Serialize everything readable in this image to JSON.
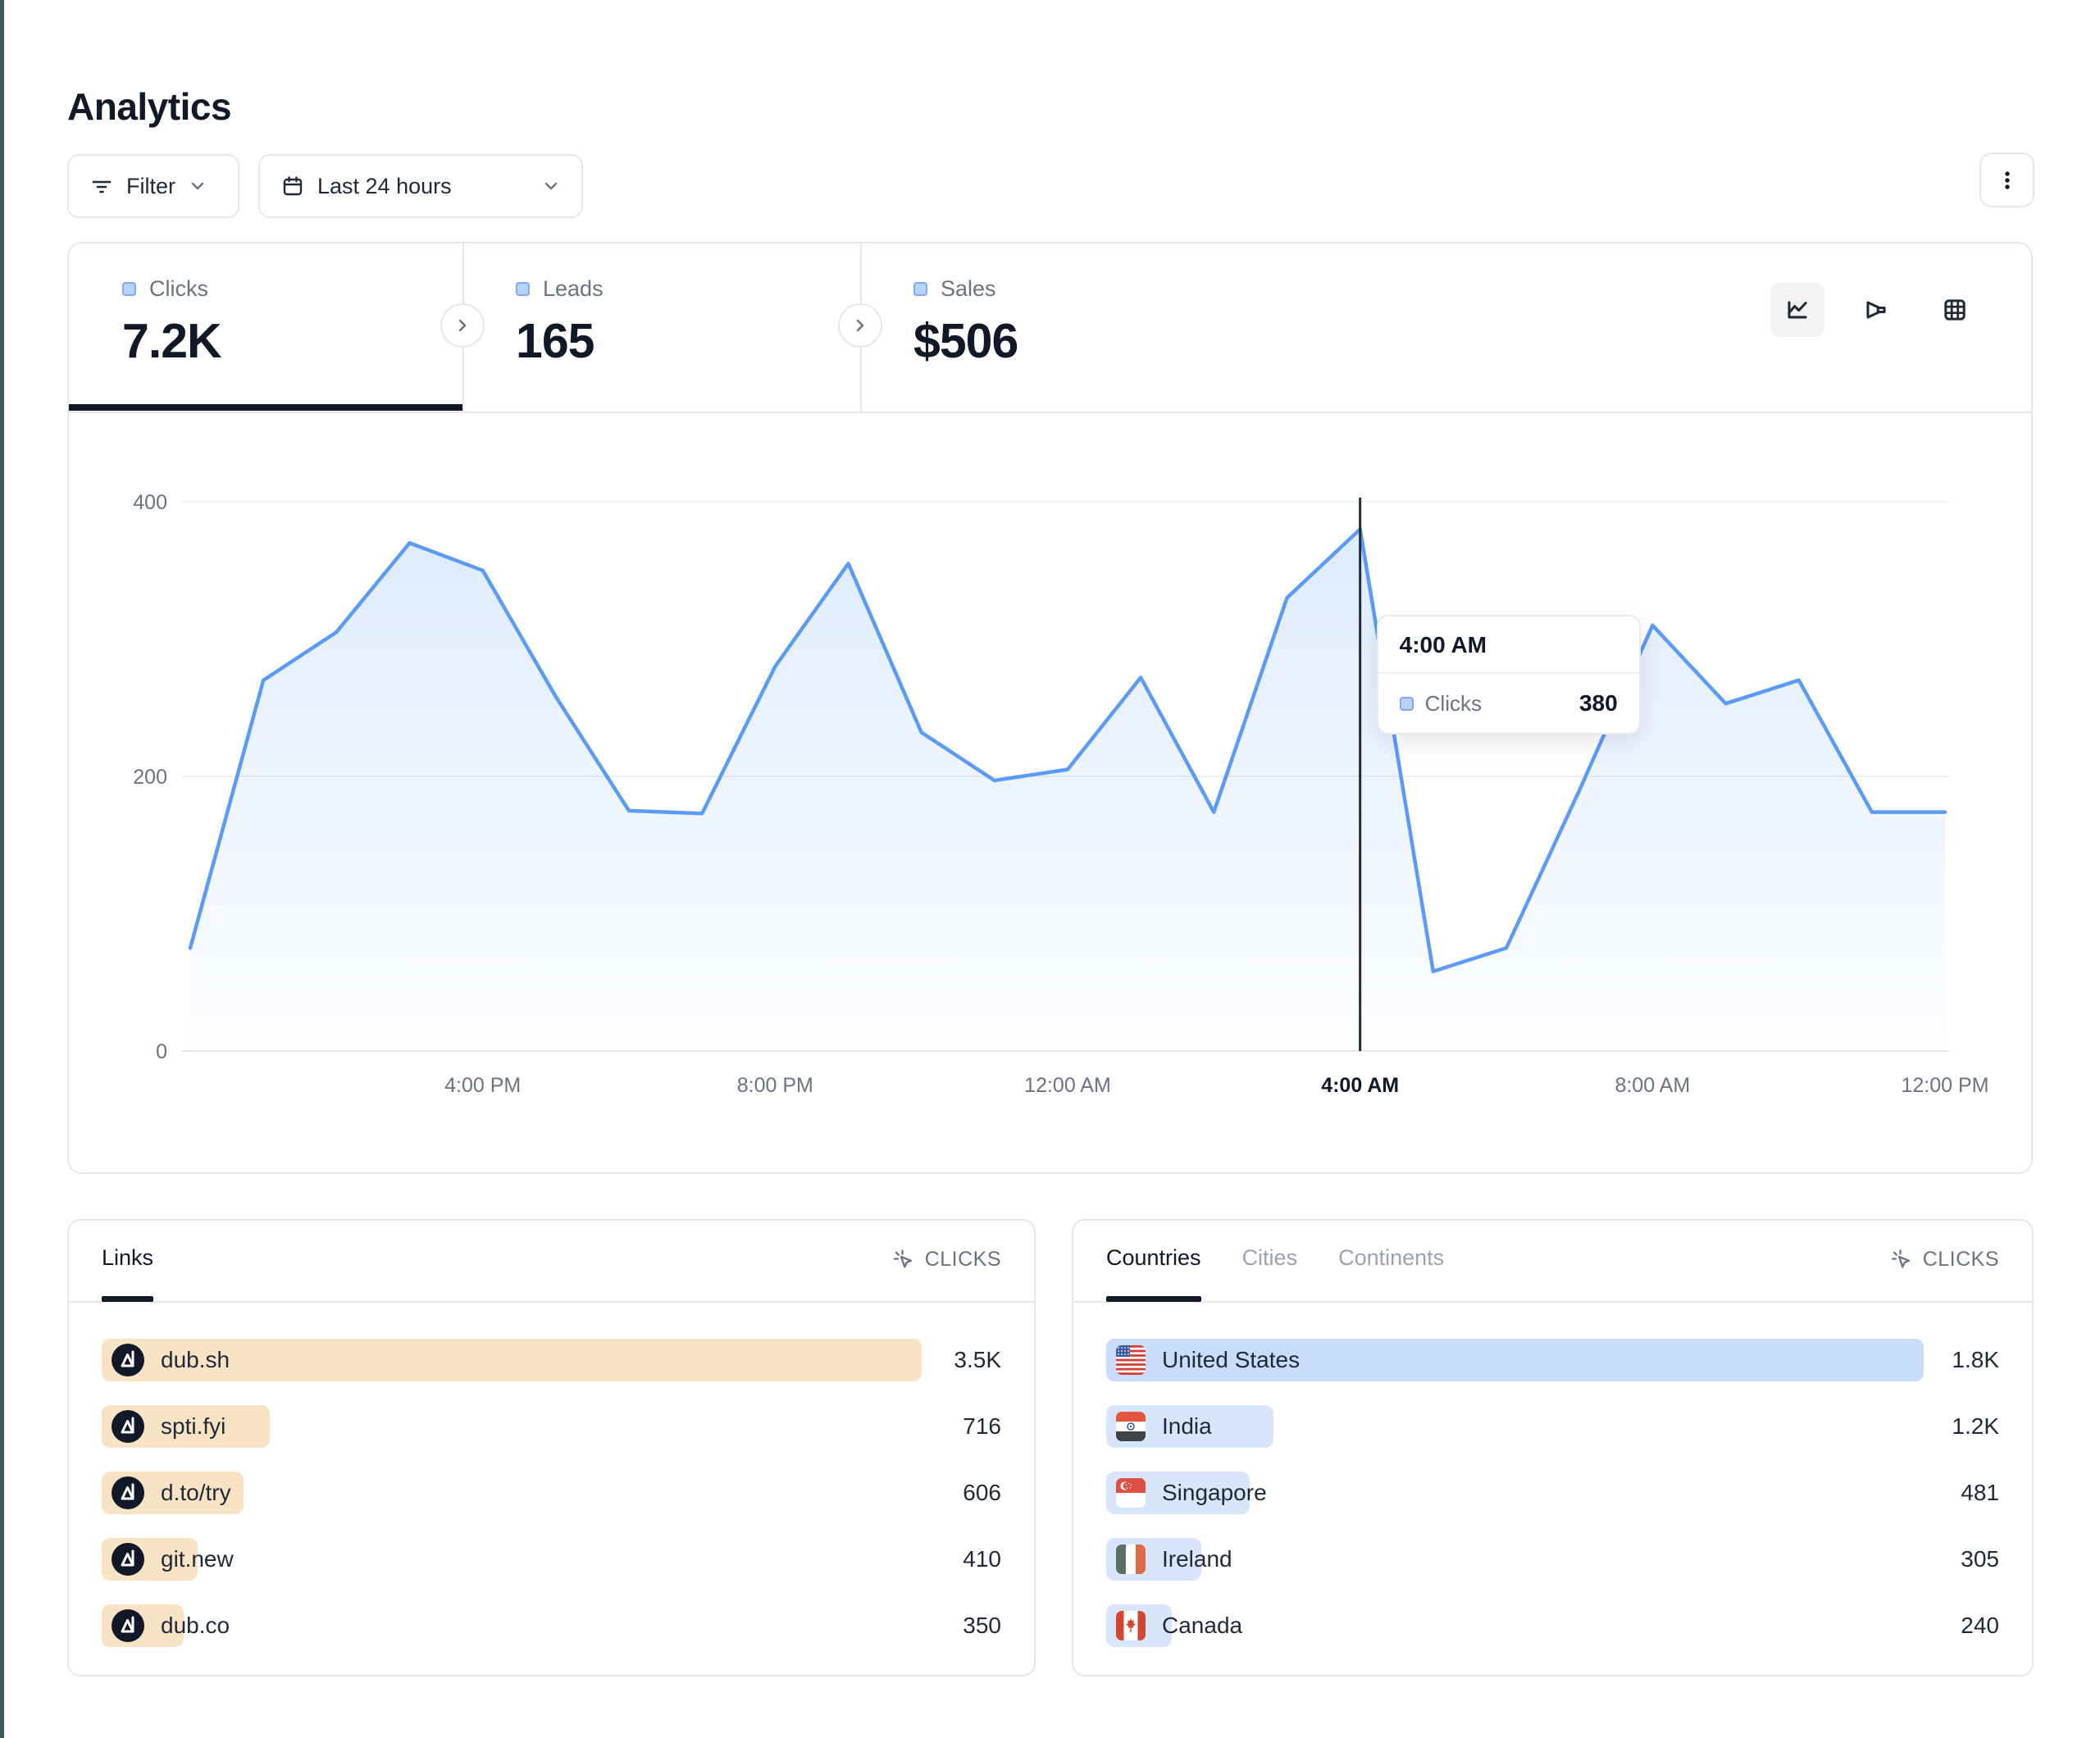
{
  "page": {
    "title": "Analytics"
  },
  "toolbar": {
    "filter_label": "Filter",
    "date_range_label": "Last 24 hours"
  },
  "stats": [
    {
      "label": "Clicks",
      "value": "7.2K",
      "active": true
    },
    {
      "label": "Leads",
      "value": "165",
      "active": false
    },
    {
      "label": "Sales",
      "value": "$506",
      "active": false
    }
  ],
  "chart_data": {
    "type": "area",
    "series_name": "Clicks",
    "x": [
      "12:00 PM",
      "1:00 PM",
      "2:00 PM",
      "3:00 PM",
      "4:00 PM",
      "5:00 PM",
      "6:00 PM",
      "7:00 PM",
      "8:00 PM",
      "9:00 PM",
      "10:00 PM",
      "11:00 PM",
      "12:00 AM",
      "1:00 AM",
      "2:00 AM",
      "3:00 AM",
      "4:00 AM",
      "5:00 AM",
      "6:00 AM",
      "7:00 AM",
      "8:00 AM",
      "9:00 AM",
      "10:00 AM",
      "11:00 AM",
      "12:00 PM"
    ],
    "values": [
      75,
      270,
      305,
      370,
      350,
      258,
      175,
      173,
      280,
      355,
      232,
      197,
      205,
      272,
      174,
      330,
      380,
      58,
      75,
      190,
      310,
      253,
      270,
      174,
      174
    ],
    "ylim": [
      0,
      400
    ],
    "yticks": [
      0,
      200,
      400
    ],
    "xticks": [
      "4:00 PM",
      "8:00 PM",
      "12:00 AM",
      "4:00 AM",
      "8:00 AM",
      "12:00 PM"
    ],
    "xtick_indices": [
      4,
      8,
      12,
      16,
      20,
      24
    ],
    "grid": true,
    "hover_index": 16,
    "hover_label": "4:00 AM",
    "hover_value": 380
  },
  "tooltip": {
    "time": "4:00 AM",
    "series_label": "Clicks",
    "value": "380"
  },
  "links_panel": {
    "tab_label": "Links",
    "metric_label": "CLICKS",
    "rows": [
      {
        "label": "dub.sh",
        "value": "3.5K",
        "pct": 100
      },
      {
        "label": "spti.fyi",
        "value": "716",
        "pct": 20.5
      },
      {
        "label": "d.to/try",
        "value": "606",
        "pct": 17.3
      },
      {
        "label": "git.new",
        "value": "410",
        "pct": 11.7
      },
      {
        "label": "dub.co",
        "value": "350",
        "pct": 10
      }
    ]
  },
  "countries_panel": {
    "tabs": [
      "Countries",
      "Cities",
      "Continents"
    ],
    "active_tab": "Countries",
    "metric_label": "CLICKS",
    "rows": [
      {
        "label": "United States",
        "flag": "us",
        "value": "1.8K",
        "pct": 100,
        "active": true
      },
      {
        "label": "India",
        "flag": "in",
        "value": "1.2K",
        "pct": 20.5,
        "active": false
      },
      {
        "label": "Singapore",
        "flag": "sg",
        "value": "481",
        "pct": 17.6,
        "active": false
      },
      {
        "label": "Ireland",
        "flag": "ie",
        "value": "305",
        "pct": 11.6,
        "active": false
      },
      {
        "label": "Canada",
        "flag": "ca",
        "value": "240",
        "pct": 8,
        "active": false
      }
    ]
  },
  "colors": {
    "accent_line_blue": "#5b9bf7",
    "area_fill_top": "rgba(91,155,247,0.20)",
    "area_fill_bottom": "rgba(91,155,247,0.01)",
    "legend_square_bg": "#b7d2fb",
    "legend_square_border": "#7fa9f2",
    "bar_orange": "#f9e3c5",
    "bar_blue": "#d7e6fb",
    "bar_blue_active": "#c9ddfa",
    "crosshair": "#1f2937",
    "left_accent": "#42565e",
    "active_underline": "#111827"
  }
}
